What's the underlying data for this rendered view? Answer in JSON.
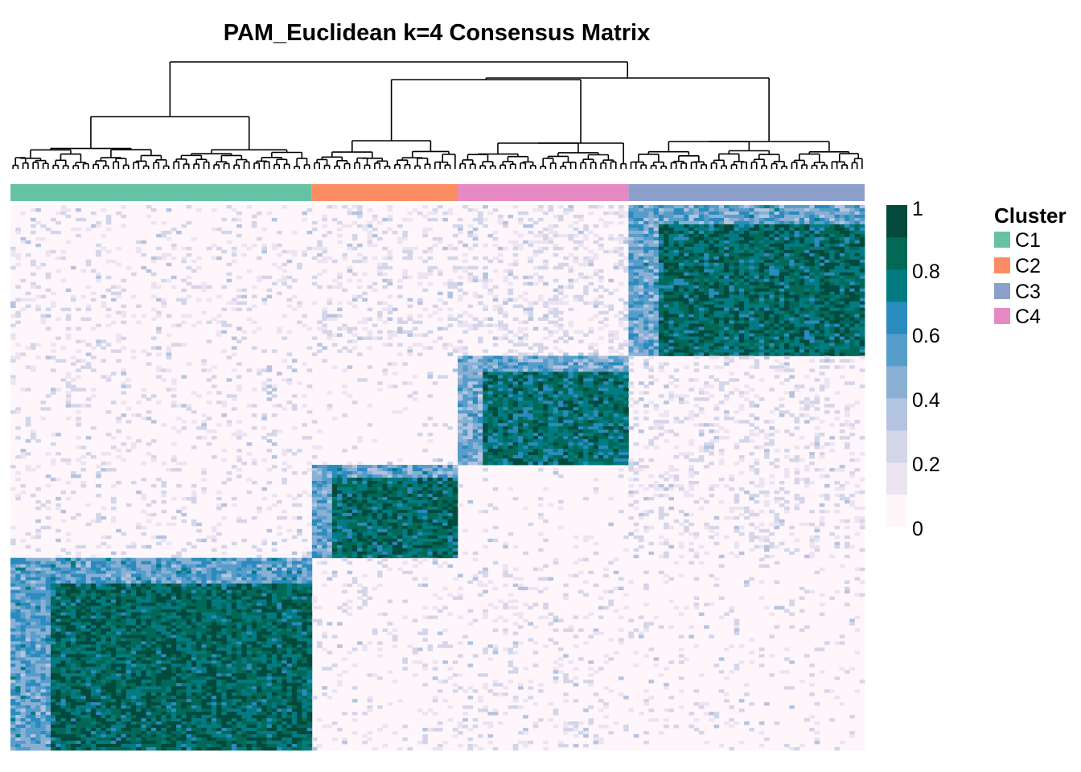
{
  "chart_data": {
    "type": "heatmap",
    "title": "PAM_Euclidean k=4 Consensus Matrix",
    "row_order": [
      "C3",
      "C4",
      "C2",
      "C1"
    ],
    "column_order": [
      "C1",
      "C2",
      "C4",
      "C3"
    ],
    "cluster_sizes": {
      "C1": 60,
      "C2": 29,
      "C4": 34,
      "C3": 47
    },
    "colorbar": {
      "range": [
        0,
        1
      ],
      "ticks": [
        "1",
        "0.8",
        "0.6",
        "0.4",
        "0.2",
        "0"
      ],
      "bin_colors": [
        "#FEF6FB",
        "#ECE4F1",
        "#D3D6E9",
        "#B3C4E0",
        "#89B0D4",
        "#579DCA",
        "#2A8BBE",
        "#027C82",
        "#026957",
        "#034A3D"
      ]
    },
    "legend": {
      "title": "Cluster",
      "placement": "right",
      "items": [
        {
          "label": "C1",
          "color": "#66C2A5"
        },
        {
          "label": "C2",
          "color": "#FC8D62"
        },
        {
          "label": "C3",
          "color": "#8DA0CB"
        },
        {
          "label": "C4",
          "color": "#E78AC3"
        }
      ]
    },
    "block_mean_consensus": {
      "rows": [
        "C3",
        "C4",
        "C2",
        "C1"
      ],
      "columns": [
        "C1",
        "C2",
        "C4",
        "C3"
      ],
      "values": [
        [
          0.05,
          0.08,
          0.1,
          0.88
        ],
        [
          0.05,
          0.02,
          0.85,
          0.08
        ],
        [
          0.05,
          0.88,
          0.02,
          0.08
        ],
        [
          0.9,
          0.04,
          0.05,
          0.03
        ]
      ]
    }
  }
}
